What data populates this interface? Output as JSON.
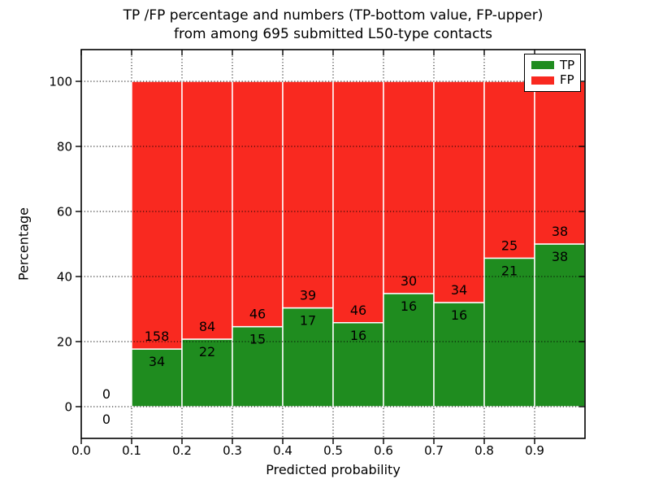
{
  "figure": {
    "title_line1": "TP /FP percentage and numbers (TP-bottom value, FP-upper)",
    "title_line2": "from among 695 submitted L50-type contacts",
    "xlabel": "Predicted probability",
    "ylabel": "Percentage"
  },
  "legend": {
    "items": [
      {
        "label": "TP",
        "color": "#1f8c1f"
      },
      {
        "label": "FP",
        "color": "#f92920"
      }
    ]
  },
  "chart_data": {
    "type": "bar",
    "stacked": true,
    "title": "TP /FP percentage and numbers (TP-bottom value, FP-upper) from among 695 submitted L50-type contacts",
    "xlabel": "Predicted probability",
    "ylabel": "Percentage",
    "xlim": [
      0.0,
      1.0
    ],
    "ylim": [
      -10,
      110
    ],
    "xticks": [
      0.0,
      0.1,
      0.2,
      0.3,
      0.4,
      0.5,
      0.6,
      0.7,
      0.8,
      0.9
    ],
    "yticks": [
      0,
      20,
      40,
      60,
      80,
      100
    ],
    "grid": true,
    "grid_style": "dotted",
    "legend_position": "upper right",
    "total_submitted": 695,
    "series": [
      {
        "name": "TP",
        "color": "#1f8c1f"
      },
      {
        "name": "FP",
        "color": "#f92920"
      }
    ],
    "bins": [
      {
        "range": [
          0.0,
          0.1
        ],
        "tp_count": 0,
        "fp_count": 0,
        "tp_pct": 0.0,
        "fp_pct": 0.0
      },
      {
        "range": [
          0.1,
          0.2
        ],
        "tp_count": 34,
        "fp_count": 158,
        "tp_pct": 17.71,
        "fp_pct": 82.29
      },
      {
        "range": [
          0.2,
          0.3
        ],
        "tp_count": 22,
        "fp_count": 84,
        "tp_pct": 20.75,
        "fp_pct": 79.25
      },
      {
        "range": [
          0.3,
          0.4
        ],
        "tp_count": 15,
        "fp_count": 46,
        "tp_pct": 24.59,
        "fp_pct": 75.41
      },
      {
        "range": [
          0.4,
          0.5
        ],
        "tp_count": 17,
        "fp_count": 39,
        "tp_pct": 30.36,
        "fp_pct": 69.64
      },
      {
        "range": [
          0.5,
          0.6
        ],
        "tp_count": 16,
        "fp_count": 46,
        "tp_pct": 25.81,
        "fp_pct": 74.19
      },
      {
        "range": [
          0.6,
          0.7
        ],
        "tp_count": 16,
        "fp_count": 30,
        "tp_pct": 34.78,
        "fp_pct": 65.22
      },
      {
        "range": [
          0.7,
          0.8
        ],
        "tp_count": 16,
        "fp_count": 34,
        "tp_pct": 32.0,
        "fp_pct": 68.0
      },
      {
        "range": [
          0.8,
          0.9
        ],
        "tp_count": 21,
        "fp_count": 25,
        "tp_pct": 45.65,
        "fp_pct": 54.35
      },
      {
        "range": [
          0.9,
          1.0
        ],
        "tp_count": 38,
        "fp_count": 38,
        "tp_pct": 50.0,
        "fp_pct": 50.0
      }
    ]
  }
}
